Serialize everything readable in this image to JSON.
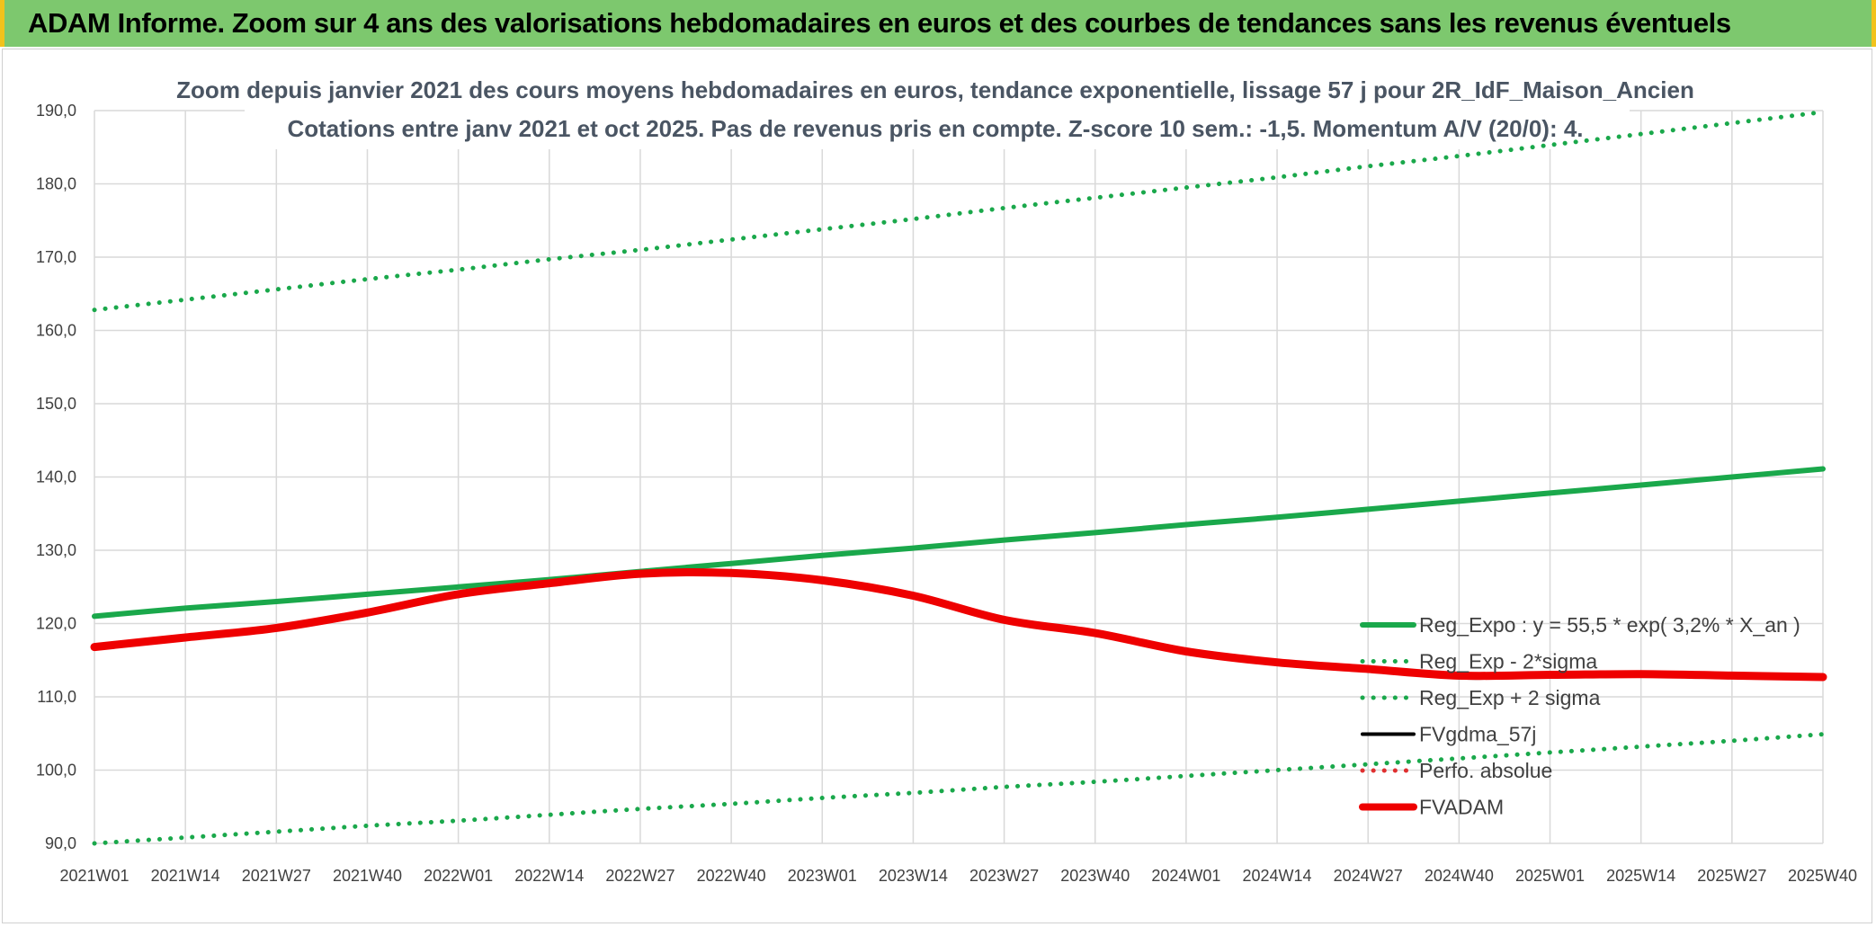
{
  "page": {
    "banner_title": "ADAM Informe. Zoom sur 4 ans des valorisations hebdomadaires en euros et des courbes de tendances sans les revenus éventuels"
  },
  "chart_data": {
    "type": "line",
    "title": "Zoom depuis janvier 2021 des cours moyens hebdomadaires en euros, tendance exponentielle, lissage 57 j pour 2R_IdF_Maison_Ancien",
    "subtitle": "Cotations entre janv 2021 et oct 2025. Pas de revenus pris en compte. Z-score 10 sem.: -1,5. Momentum A/V (20/0): 4.",
    "xlabel": "",
    "ylabel": "",
    "ylim": [
      90,
      190
    ],
    "yticks": [
      "90,0",
      "100,0",
      "110,0",
      "120,0",
      "130,0",
      "140,0",
      "150,0",
      "160,0",
      "170,0",
      "180,0",
      "190,0"
    ],
    "xticks": [
      "2021W01",
      "2021W14",
      "2021W27",
      "2021W40",
      "2022W01",
      "2022W14",
      "2022W27",
      "2022W40",
      "2023W01",
      "2023W14",
      "2023W27",
      "2023W40",
      "2024W01",
      "2024W14",
      "2024W27",
      "2024W40",
      "2025W01",
      "2025W14",
      "2025W27",
      "2025W40"
    ],
    "grid": true,
    "legend_position": "right",
    "series": [
      {
        "name": "Reg_Expo : y = 55,5 * exp( 3,2% *  X_an )",
        "color": "#1aa84b",
        "style": "solid",
        "values": [
          121.0,
          122.1,
          123.0,
          124.0,
          125.0,
          126.0,
          127.1,
          128.2,
          129.3,
          130.3,
          131.4,
          132.4,
          133.5,
          134.5,
          135.6,
          136.7,
          137.8,
          138.9,
          140.0,
          141.1
        ]
      },
      {
        "name": "Reg_Exp - 2*sigma",
        "color": "#1aa84b",
        "style": "dotted",
        "values": [
          90.0,
          90.8,
          91.6,
          92.4,
          93.1,
          93.9,
          94.7,
          95.4,
          96.2,
          96.9,
          97.7,
          98.4,
          99.2,
          100.0,
          100.8,
          101.6,
          102.4,
          103.2,
          104.0,
          104.9
        ]
      },
      {
        "name": "Reg_Exp + 2 sigma",
        "color": "#1aa84b",
        "style": "dotted",
        "values": [
          162.8,
          164.2,
          165.6,
          167.0,
          168.3,
          169.7,
          171.0,
          172.4,
          173.8,
          175.2,
          176.7,
          178.1,
          179.5,
          180.9,
          182.4,
          183.8,
          185.3,
          186.8,
          188.3,
          189.8
        ]
      },
      {
        "name": "FVgdma_57j",
        "color": "#000000",
        "style": "solid",
        "values": [
          116.7,
          118.0,
          119.2,
          121.3,
          123.9,
          125.4,
          126.6,
          126.7,
          125.7,
          123.6,
          120.3,
          118.6,
          116.0,
          114.5,
          113.7,
          112.6,
          112.8,
          113.0,
          112.8,
          112.6
        ]
      },
      {
        "name": "Perfo. absolue",
        "color": "#e03030",
        "style": "dotted",
        "values": []
      },
      {
        "name": "FVADAM",
        "color": "#ee0000",
        "style": "solid",
        "values": [
          116.8,
          118.1,
          119.4,
          121.5,
          124.0,
          125.5,
          126.8,
          126.9,
          125.9,
          123.8,
          120.5,
          118.7,
          116.2,
          114.7,
          113.8,
          112.9,
          113.0,
          113.1,
          112.9,
          112.7
        ]
      }
    ]
  }
}
